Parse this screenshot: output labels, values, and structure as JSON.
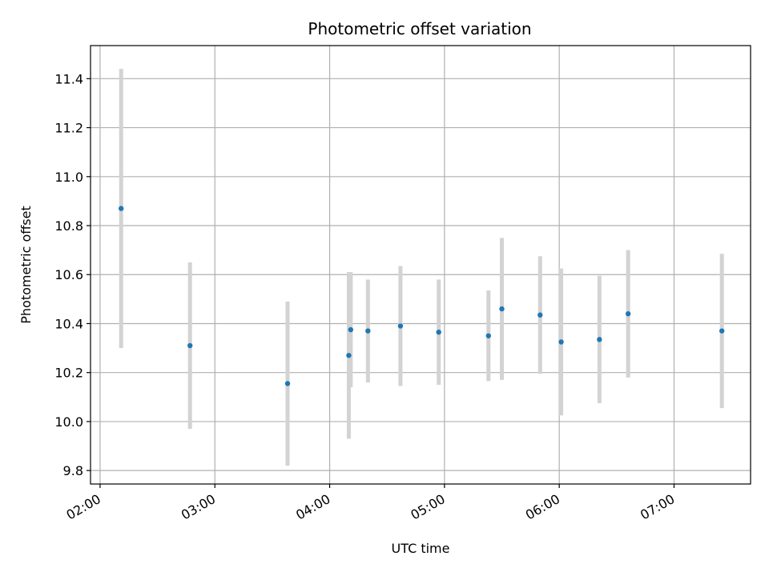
{
  "chart_data": {
    "type": "scatter",
    "title": "Photometric offset variation",
    "xlabel": "UTC time",
    "ylabel": "Photometric offset",
    "grid": true,
    "xlim": [
      "01:55",
      "07:40"
    ],
    "ylim": [
      9.745,
      11.535
    ],
    "x_ticks": [
      "02:00",
      "03:00",
      "04:00",
      "05:00",
      "06:00",
      "07:00"
    ],
    "y_ticks": [
      "9.8",
      "10.0",
      "10.2",
      "10.4",
      "10.6",
      "10.8",
      "11.0",
      "11.2",
      "11.4"
    ],
    "colors": {
      "points": "#1f77b4",
      "errorbars": "#d3d3d3",
      "grid": "#b0b0b0"
    },
    "series": [
      {
        "points": [
          {
            "x": "02:11",
            "y": 10.87,
            "err": 0.57
          },
          {
            "x": "02:47",
            "y": 10.31,
            "err": 0.34
          },
          {
            "x": "03:38",
            "y": 10.155,
            "err": 0.335
          },
          {
            "x": "04:10",
            "y": 10.27,
            "err": 0.34
          },
          {
            "x": "04:11",
            "y": 10.375,
            "err": 0.235
          },
          {
            "x": "04:20",
            "y": 10.37,
            "err": 0.21
          },
          {
            "x": "04:37",
            "y": 10.39,
            "err": 0.245
          },
          {
            "x": "04:57",
            "y": 10.365,
            "err": 0.215
          },
          {
            "x": "05:23",
            "y": 10.35,
            "err": 0.185
          },
          {
            "x": "05:30",
            "y": 10.46,
            "err": 0.29
          },
          {
            "x": "05:50",
            "y": 10.435,
            "err": 0.24
          },
          {
            "x": "06:01",
            "y": 10.325,
            "err": 0.3
          },
          {
            "x": "06:21",
            "y": 10.335,
            "err": 0.26
          },
          {
            "x": "06:36",
            "y": 10.44,
            "err": 0.26
          },
          {
            "x": "07:25",
            "y": 10.37,
            "err": 0.315
          }
        ]
      }
    ]
  }
}
